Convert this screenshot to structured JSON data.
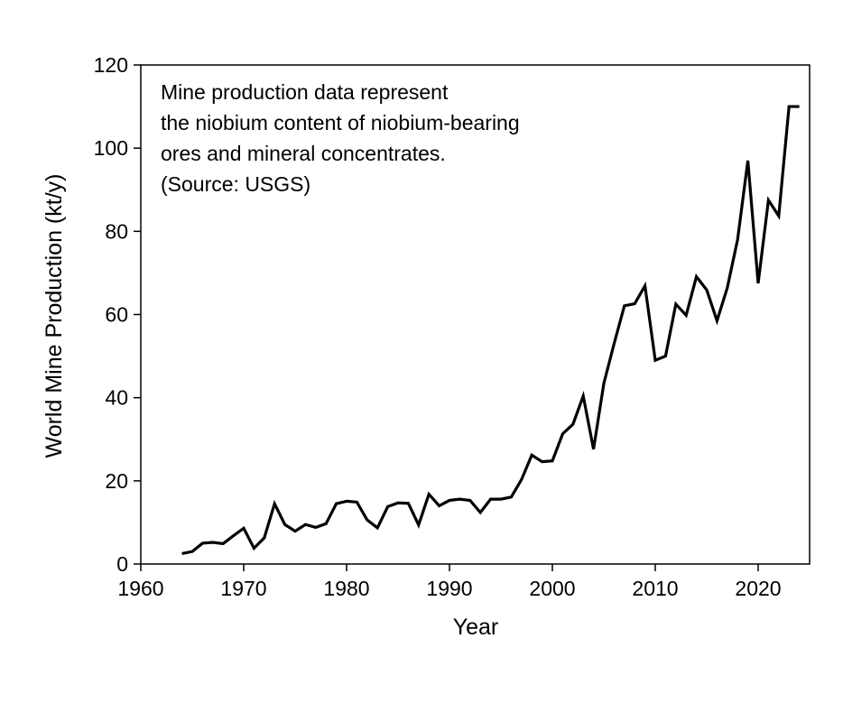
{
  "chart_data": {
    "type": "line",
    "title": "",
    "xlabel": "Year",
    "ylabel": "World Mine Production (kt/y)",
    "xlim": [
      1960,
      2025
    ],
    "ylim": [
      0,
      120
    ],
    "xticks": [
      1960,
      1970,
      1980,
      1990,
      2000,
      2010,
      2020
    ],
    "yticks": [
      0,
      20,
      40,
      60,
      80,
      100,
      120
    ],
    "annotation": [
      "Mine production data represent",
      "the niobium content of niobium-bearing",
      "ores and mineral concentrates.",
      "(Source: USGS)"
    ],
    "series": [
      {
        "name": "World Mine Production",
        "color": "#000000",
        "x": [
          1964,
          1965,
          1966,
          1967,
          1968,
          1969,
          1970,
          1971,
          1972,
          1973,
          1974,
          1975,
          1976,
          1977,
          1978,
          1979,
          1980,
          1981,
          1982,
          1983,
          1984,
          1985,
          1986,
          1987,
          1988,
          1989,
          1990,
          1991,
          1992,
          1993,
          1994,
          1995,
          1996,
          1997,
          1998,
          1999,
          2000,
          2001,
          2002,
          2003,
          2004,
          2005,
          2006,
          2007,
          2008,
          2009,
          2010,
          2011,
          2012,
          2013,
          2014,
          2015,
          2016,
          2017,
          2018,
          2019,
          2020,
          2021,
          2022,
          2023,
          2024
        ],
        "values": [
          2.5,
          3,
          5,
          5.2,
          4.9,
          6.8,
          8.6,
          3.8,
          6.3,
          14.5,
          9.5,
          7.9,
          9.5,
          8.8,
          9.7,
          14.5,
          15.1,
          14.9,
          10.6,
          8.7,
          13.8,
          14.7,
          14.6,
          9.4,
          16.8,
          14,
          15.3,
          15.6,
          15.3,
          12.4,
          15.6,
          15.6,
          16.1,
          20.3,
          26.2,
          24.6,
          24.8,
          31.3,
          33.6,
          40.4,
          27.6,
          43.4,
          53,
          62.1,
          62.6,
          66.9,
          49,
          50,
          62.5,
          59.8,
          69.1,
          65.9,
          58.5,
          66.4,
          78,
          97,
          67.5,
          87.5,
          83.7,
          110,
          110
        ]
      }
    ]
  }
}
